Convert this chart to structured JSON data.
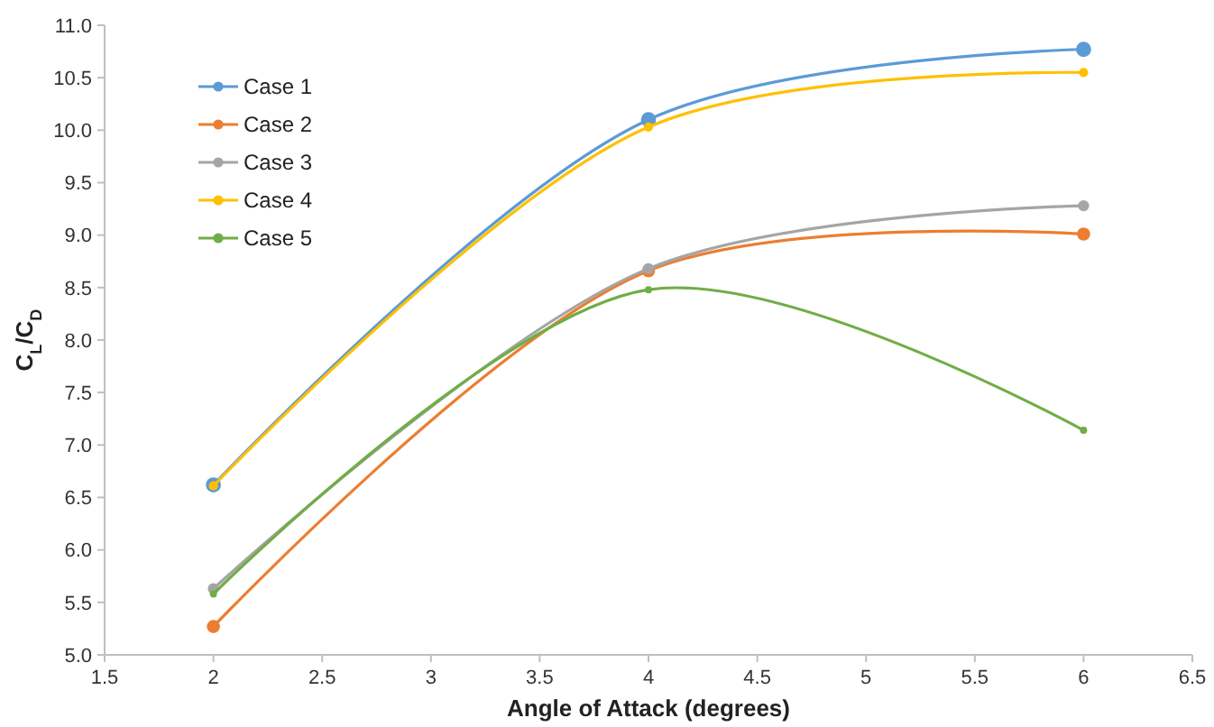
{
  "chart_data": {
    "type": "line",
    "xlabel": "Angle of Attack (degrees)",
    "ylabel": "C$_{L}$/C$_{D}$",
    "x": [
      2,
      4,
      6
    ],
    "xlim": [
      1.5,
      6.5
    ],
    "xticks": [
      1.5,
      2,
      2.5,
      3,
      3.5,
      4,
      4.5,
      5,
      5.5,
      6,
      6.5
    ],
    "ylim": [
      5,
      11
    ],
    "yticks": [
      {
        "value": 5,
        "label": "5.0"
      },
      {
        "value": 5.5,
        "label": "5.5"
      },
      {
        "value": 6,
        "label": "6.0"
      },
      {
        "value": 6.5,
        "label": "6.5"
      },
      {
        "value": 7,
        "label": "7.0"
      },
      {
        "value": 7.5,
        "label": "7.5"
      },
      {
        "value": 8,
        "label": "8.0"
      },
      {
        "value": 8.5,
        "label": "8.5"
      },
      {
        "value": 9,
        "label": "9.0"
      },
      {
        "value": 9.5,
        "label": "9.5"
      },
      {
        "value": 10,
        "label": "10.0"
      },
      {
        "value": 10.5,
        "label": "10.5"
      },
      {
        "value": 11,
        "label": "11.0"
      }
    ],
    "grid": false,
    "legend": "top left",
    "marker": "circle",
    "line_style": "solid",
    "series": [
      {
        "name": "Case 1",
        "color": "#5b9bd5",
        "values": [
          6.62,
          10.1,
          10.77
        ]
      },
      {
        "name": "Case 2",
        "color": "#ed7d31",
        "values": [
          5.27,
          8.66,
          9.01
        ]
      },
      {
        "name": "Case 3",
        "color": "#a5a5a5",
        "values": [
          5.63,
          8.68,
          9.28
        ]
      },
      {
        "name": "Case 4",
        "color": "#ffc000",
        "values": [
          6.61,
          10.03,
          10.55
        ]
      },
      {
        "name": "Case 5",
        "color": "#70ad47",
        "values": [
          5.58,
          8.48,
          7.14
        ]
      }
    ]
  }
}
